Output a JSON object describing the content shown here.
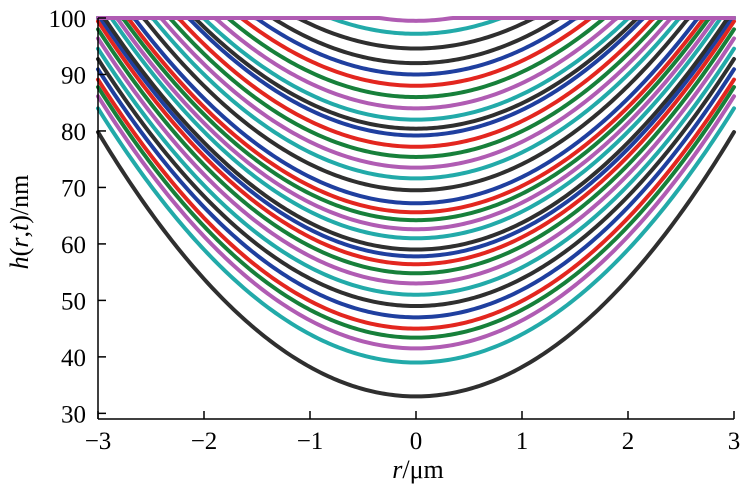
{
  "chart_data": {
    "type": "line",
    "xlabel": {
      "var": "r",
      "unit": "/μm"
    },
    "ylabel": {
      "var_h": "h",
      "open": "(",
      "var_r": "r",
      "comma": ",",
      "var_t": "t",
      "close": ")",
      "unit": "/nm"
    },
    "xlim": [
      -3,
      3
    ],
    "ylim": [
      29,
      100
    ],
    "xticks": [
      -3,
      -2,
      -1,
      0,
      1,
      2,
      3
    ],
    "xtick_labels": [
      "−3",
      "−2",
      "−1",
      "0",
      "1",
      "2",
      "3"
    ],
    "yticks": [
      30,
      40,
      50,
      60,
      70,
      80,
      90,
      100
    ],
    "ytick_labels": [
      "30",
      "40",
      "50",
      "60",
      "70",
      "80",
      "90",
      "100"
    ],
    "grid": false,
    "legend": "none",
    "description_model": "each curve h(r) = min(100, h_min + k*r^2), clipped at 100",
    "color_cycle": [
      "#2f2f2f",
      "#22aaa9",
      "#b05cb3",
      "#1f3f9f",
      "#e3261f",
      "#17803a"
    ],
    "series": [
      {
        "h_min": 33.0,
        "k": 5.2,
        "color": "#2f2f2f"
      },
      {
        "h_min": 39.0,
        "k": 5.0,
        "color": "#22aaa9"
      },
      {
        "h_min": 41.5,
        "k": 4.96,
        "color": "#b05cb3"
      },
      {
        "h_min": 43.4,
        "k": 4.93,
        "color": "#17803a"
      },
      {
        "h_min": 45.0,
        "k": 4.9,
        "color": "#e3261f"
      },
      {
        "h_min": 47.0,
        "k": 4.88,
        "color": "#1f3f9f"
      },
      {
        "h_min": 49.0,
        "k": 4.86,
        "color": "#2f2f2f"
      },
      {
        "h_min": 51.0,
        "k": 4.84,
        "color": "#22aaa9"
      },
      {
        "h_min": 53.0,
        "k": 4.82,
        "color": "#b05cb3"
      },
      {
        "h_min": 54.8,
        "k": 4.8,
        "color": "#17803a"
      },
      {
        "h_min": 56.4,
        "k": 4.78,
        "color": "#e3261f"
      },
      {
        "h_min": 57.8,
        "k": 4.76,
        "color": "#1f3f9f"
      },
      {
        "h_min": 59.0,
        "k": 4.74,
        "color": "#2f2f2f"
      },
      {
        "h_min": 61.0,
        "k": 4.72,
        "color": "#22aaa9"
      },
      {
        "h_min": 62.6,
        "k": 4.7,
        "color": "#b05cb3"
      },
      {
        "h_min": 64.2,
        "k": 4.68,
        "color": "#17803a"
      },
      {
        "h_min": 65.6,
        "k": 4.66,
        "color": "#e3261f"
      },
      {
        "h_min": 67.2,
        "k": 4.64,
        "color": "#1f3f9f"
      },
      {
        "h_min": 69.5,
        "k": 4.62,
        "color": "#2f2f2f"
      },
      {
        "h_min": 71.6,
        "k": 4.6,
        "color": "#22aaa9"
      },
      {
        "h_min": 73.5,
        "k": 4.58,
        "color": "#b05cb3"
      },
      {
        "h_min": 75.4,
        "k": 4.56,
        "color": "#17803a"
      },
      {
        "h_min": 77.2,
        "k": 4.54,
        "color": "#e3261f"
      },
      {
        "h_min": 79.2,
        "k": 4.52,
        "color": "#1f3f9f"
      },
      {
        "h_min": 80.4,
        "k": 4.5,
        "color": "#2f2f2f"
      },
      {
        "h_min": 82.0,
        "k": 4.48,
        "color": "#22aaa9"
      },
      {
        "h_min": 84.0,
        "k": 4.46,
        "color": "#b05cb3"
      },
      {
        "h_min": 86.0,
        "k": 4.44,
        "color": "#17803a"
      },
      {
        "h_min": 88.0,
        "k": 4.42,
        "color": "#e3261f"
      },
      {
        "h_min": 90.0,
        "k": 4.4,
        "color": "#1f3f9f"
      },
      {
        "h_min": 92.0,
        "k": 4.38,
        "color": "#2f2f2f"
      },
      {
        "h_min": 94.6,
        "k": 4.36,
        "color": "#2f2f2f"
      },
      {
        "h_min": 97.2,
        "k": 4.34,
        "color": "#22aaa9"
      },
      {
        "h_min": 99.5,
        "k": 4.3,
        "color": "#b05cb3"
      }
    ]
  }
}
